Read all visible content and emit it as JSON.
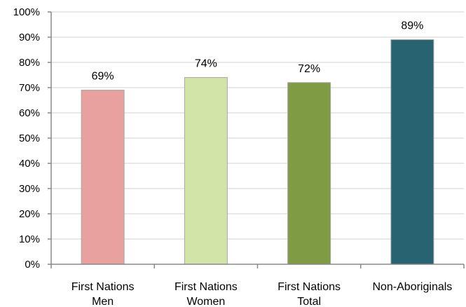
{
  "chart_data": {
    "type": "bar",
    "title": "",
    "xlabel": "",
    "ylabel": "",
    "categories": [
      [
        "First Nations",
        "Men"
      ],
      [
        "First Nations",
        "Women"
      ],
      [
        "First Nations",
        "Total"
      ],
      [
        "Non-Aboriginals"
      ]
    ],
    "values": [
      69,
      74,
      72,
      89
    ],
    "data_labels": [
      "69%",
      "74%",
      "72%",
      "89%"
    ],
    "colors": [
      "#e8a19f",
      "#d3e4a8",
      "#7f9c44",
      "#276371"
    ],
    "ylim": [
      0,
      100
    ],
    "yticks": [
      0,
      10,
      20,
      30,
      40,
      50,
      60,
      70,
      80,
      90,
      100
    ],
    "ytick_labels": [
      "0%",
      "10%",
      "20%",
      "30%",
      "40%",
      "50%",
      "60%",
      "70%",
      "80%",
      "90%",
      "100%"
    ],
    "grid": true,
    "legend": false
  }
}
